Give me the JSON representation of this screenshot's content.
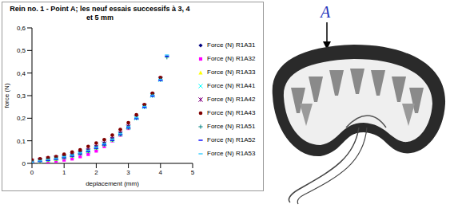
{
  "chart_data": {
    "type": "scatter",
    "title": "Rein no. 1 - Point A; les neuf essais successifs à 3, 4 et 5 mm",
    "x_label": "deplacement (mm)",
    "y_label": "force (N)",
    "x": [
      0,
      0.25,
      0.5,
      0.75,
      1,
      1.25,
      1.5,
      1.75,
      2,
      2.25,
      2.5,
      2.75,
      3,
      3.25,
      3.5,
      3.75,
      4,
      4.2
    ],
    "series": [
      {
        "name": "Force (N) R1A31",
        "color": "#000080",
        "marker": "diamond",
        "values": [
          0.01,
          0.015,
          0.02,
          0.025,
          0.032,
          0.04,
          0.05,
          0.06,
          0.075,
          0.09,
          0.11,
          0.135,
          0.165,
          null,
          null,
          null,
          null,
          null
        ]
      },
      {
        "name": "Force (N) R1A32",
        "color": "#ff00ff",
        "marker": "square",
        "values": [
          0.0,
          0.0,
          0.005,
          0.01,
          0.015,
          0.02,
          0.03,
          0.04,
          0.055,
          0.075,
          0.1,
          0.125,
          0.155,
          null,
          null,
          null,
          null,
          null
        ]
      },
      {
        "name": "Force (N) R1A33",
        "color": "#ffff00",
        "marker": "triangle",
        "values": [
          0.005,
          0.01,
          0.015,
          0.02,
          0.028,
          0.035,
          0.045,
          0.055,
          0.07,
          0.085,
          0.105,
          0.13,
          0.16,
          null,
          null,
          null,
          null,
          null
        ]
      },
      {
        "name": "Force (N) R1A41",
        "color": "#00ffff",
        "marker": "x",
        "values": [
          0.005,
          0.01,
          0.015,
          0.02,
          0.026,
          0.033,
          0.043,
          0.053,
          0.068,
          0.083,
          0.103,
          0.128,
          0.158,
          0.2,
          0.25,
          0.3,
          0.37,
          null
        ]
      },
      {
        "name": "Force (N) R1A42",
        "color": "#800080",
        "marker": "star",
        "values": [
          0.01,
          0.015,
          0.02,
          0.025,
          0.03,
          0.038,
          0.048,
          0.058,
          0.073,
          0.088,
          0.108,
          0.133,
          0.163,
          0.205,
          0.255,
          0.305,
          0.375,
          null
        ]
      },
      {
        "name": "Force (N) R1A43",
        "color": "#800000",
        "marker": "circle",
        "values": [
          0.015,
          0.02,
          0.025,
          0.03,
          0.04,
          0.05,
          0.06,
          0.075,
          0.09,
          0.105,
          0.125,
          0.15,
          0.18,
          0.215,
          0.26,
          0.31,
          0.38,
          null
        ]
      },
      {
        "name": "Force (N) R1A51",
        "color": "#008080",
        "marker": "plus",
        "values": [
          0.005,
          0.01,
          0.015,
          0.02,
          0.027,
          0.034,
          0.044,
          0.054,
          0.069,
          0.084,
          0.104,
          0.129,
          0.159,
          0.2,
          0.25,
          0.3,
          0.37,
          0.47
        ]
      },
      {
        "name": "Force (N) R1A52",
        "color": "#0000ff",
        "marker": "dash",
        "values": [
          0.005,
          0.008,
          0.013,
          0.018,
          0.025,
          0.032,
          0.042,
          0.052,
          0.067,
          0.082,
          0.102,
          0.127,
          0.157,
          0.198,
          0.248,
          0.298,
          0.368,
          0.475
        ]
      },
      {
        "name": "Force (N) R1A53",
        "color": "#33ccff",
        "marker": "dash",
        "values": [
          0.006,
          0.011,
          0.016,
          0.021,
          0.029,
          0.036,
          0.046,
          0.056,
          0.071,
          0.086,
          0.106,
          0.131,
          0.161,
          0.202,
          0.252,
          0.302,
          0.372,
          0.48
        ]
      }
    ],
    "xlim": [
      0,
      5
    ],
    "xticks": [
      0,
      1,
      2,
      3,
      4,
      5
    ],
    "ylim": [
      0,
      0.6
    ],
    "yticks": [
      0,
      {
        "value": 0.1,
        "label": "0,1"
      },
      {
        "value": 0.2,
        "label": "0,2"
      },
      {
        "value": 0.3,
        "label": "0,3"
      },
      {
        "value": 0.4,
        "label": "0,4"
      },
      {
        "value": 0.5,
        "label": "0,5"
      },
      {
        "value": 0.6,
        "label": "0,6"
      }
    ],
    "grid": false,
    "legend": "right"
  },
  "figure": {
    "label": "A"
  }
}
